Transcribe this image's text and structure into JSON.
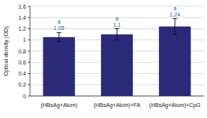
{
  "chart_data": {
    "type": "bar",
    "y_label": "Optical density (OD)",
    "categories": [
      "(HBsAg+Alum)",
      "(HBsAg+Alum)+FA",
      "(HBsAg+Alum)+CpG"
    ],
    "values": [
      1.05,
      1.1,
      1.24
    ],
    "errors": [
      0.08,
      0.1,
      0.14
    ],
    "significance": [
      "a",
      "a",
      "a"
    ],
    "color": "#2a2a78",
    "ylim": [
      0,
      1.6
    ],
    "yticks": [
      0,
      0.2,
      0.4,
      0.6,
      0.8,
      1,
      1.2,
      1.4,
      1.6
    ],
    "grid": true,
    "data_labels": true
  }
}
